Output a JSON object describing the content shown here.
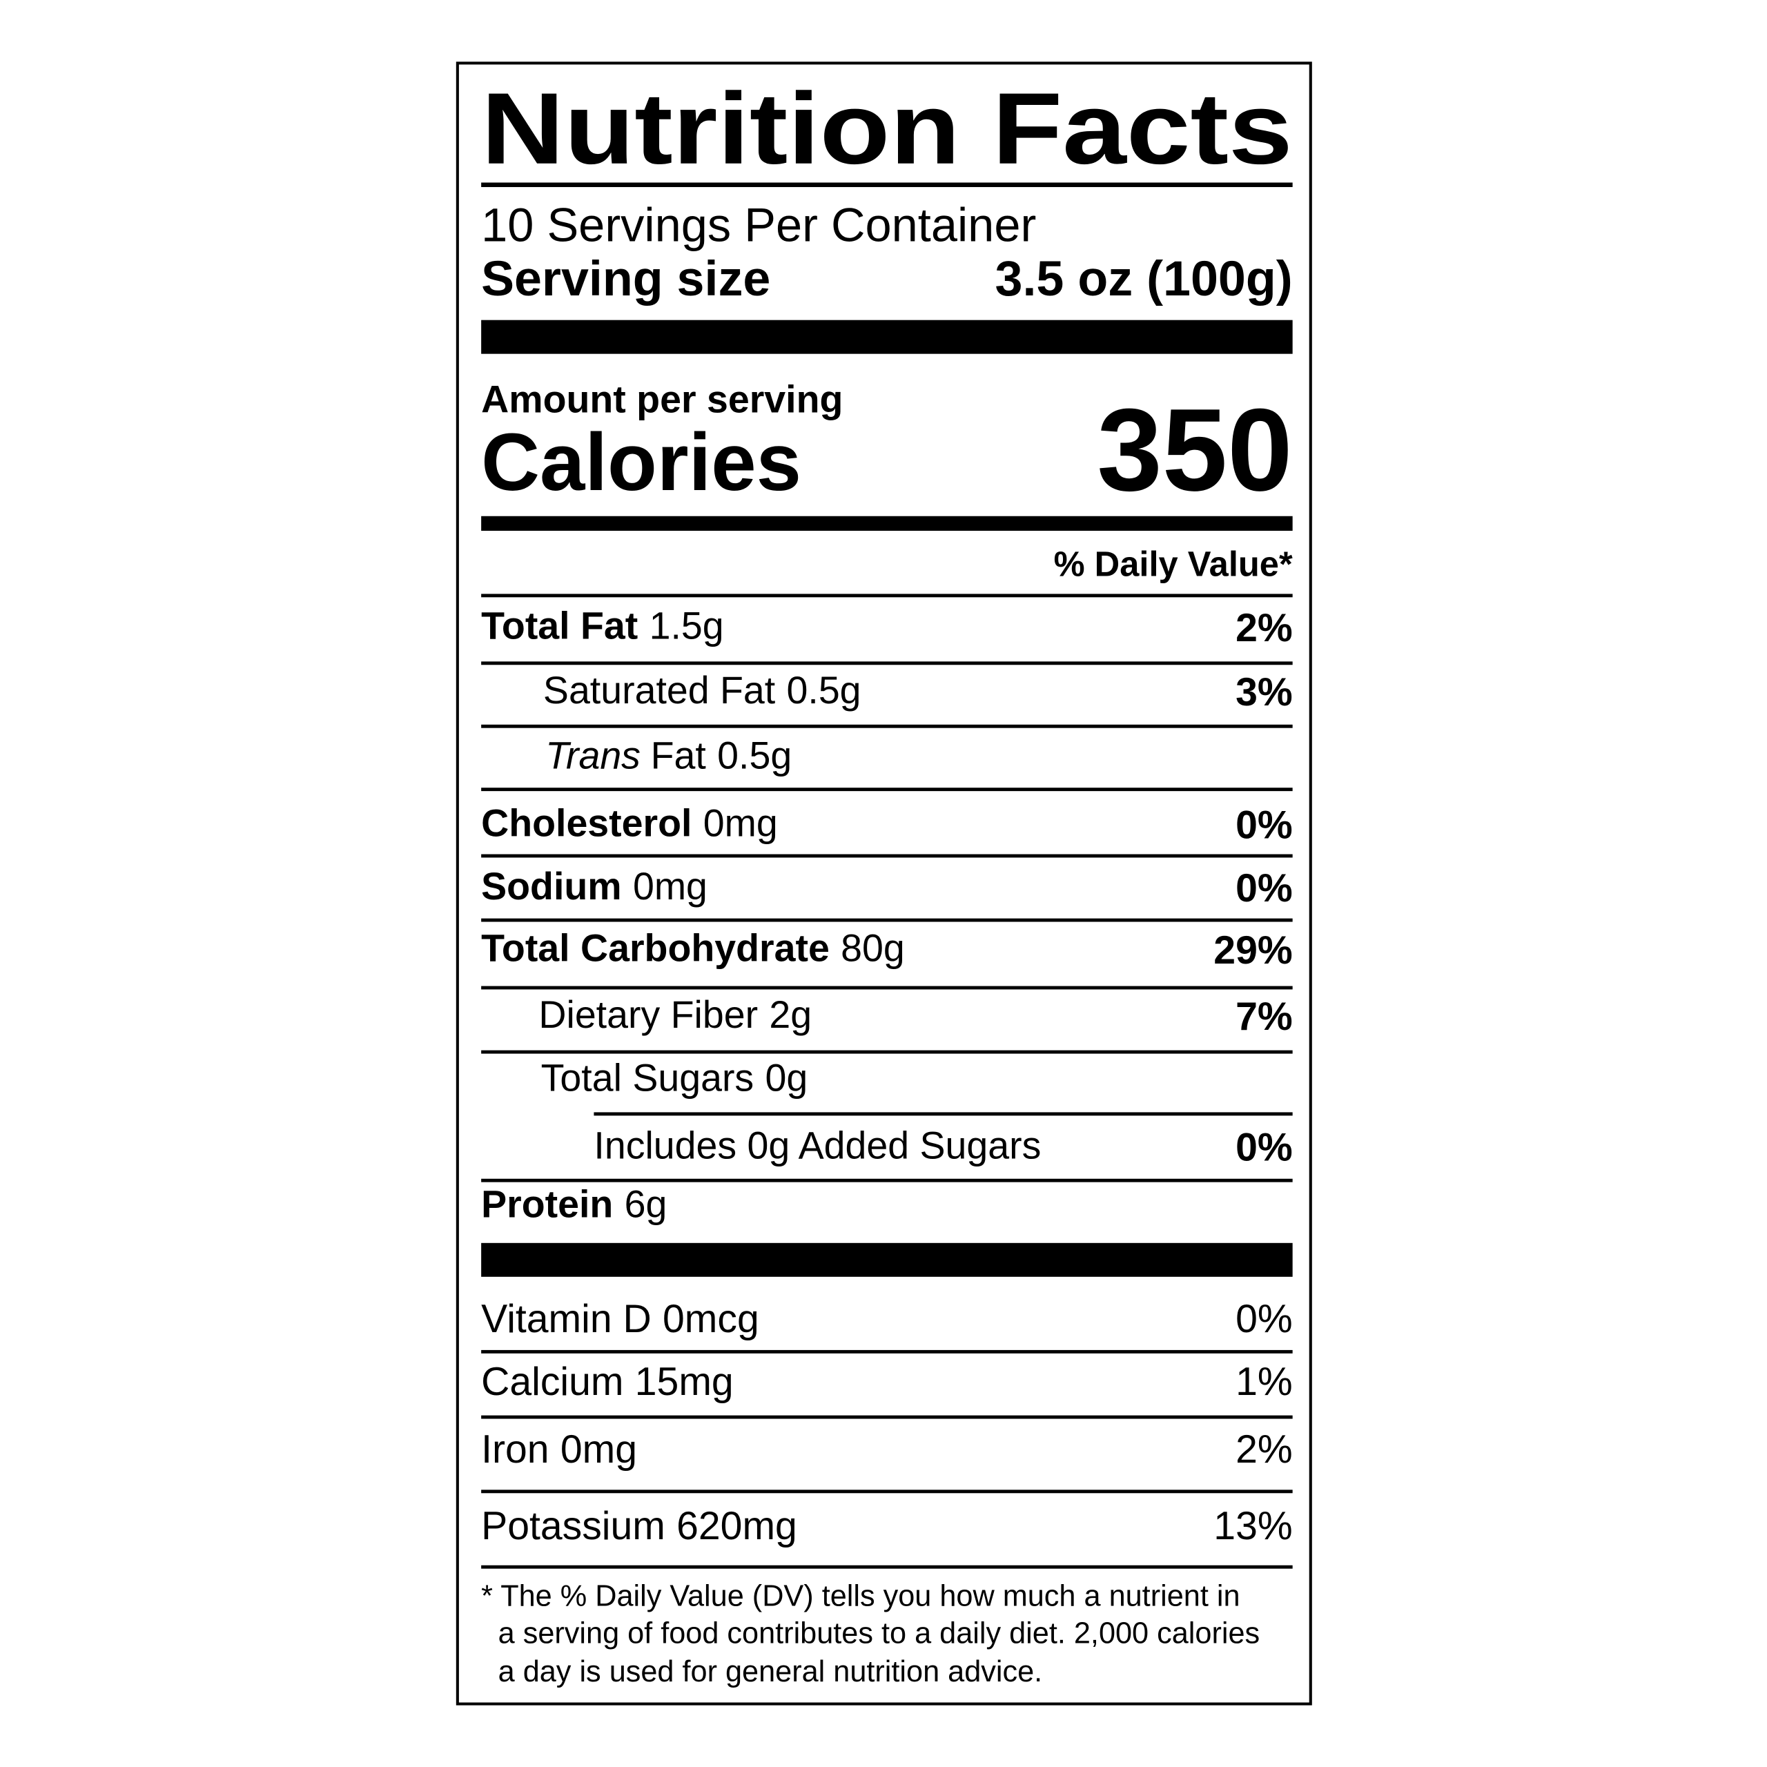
{
  "title": "Nutrition Facts",
  "servings": "10 Servings Per Container",
  "serving_size": {
    "label": "Serving size",
    "value": "3.5 oz (100g)"
  },
  "amount_per_serving": "Amount per serving",
  "calories": {
    "label": "Calories",
    "value": 350
  },
  "daily_value_header": "% Daily Value*",
  "nutrients": [
    {
      "name": "Total Fat",
      "amount": "1.5g",
      "dv": "2%"
    },
    {
      "name": "Saturated Fat",
      "amount": "0.5g",
      "dv": "3%"
    },
    {
      "name_italic": "Trans",
      "name": "Fat",
      "amount": "0.5g"
    },
    {
      "name": "Cholesterol",
      "amount": "0mg",
      "dv": "0%"
    },
    {
      "name": "Sodium",
      "amount": "0mg",
      "dv": "0%"
    },
    {
      "name": "Total Carbohydrate",
      "amount": "80g",
      "dv": "29%"
    },
    {
      "name": "Dietary Fiber",
      "amount": "2g",
      "dv": "7%"
    },
    {
      "name": "Total Sugars",
      "amount": "0g"
    },
    {
      "name": "Includes 0g Added Sugars",
      "dv": "0%"
    },
    {
      "name": "Protein",
      "amount": "6g"
    }
  ],
  "vitamins": [
    {
      "name": "Vitamin D",
      "amount": "0mcg",
      "dv": "0%"
    },
    {
      "name": "Calcium",
      "amount": "15mg",
      "dv": "1%"
    },
    {
      "name": "Iron",
      "amount": "0mg",
      "dv": "2%"
    },
    {
      "name": "Potassium",
      "amount": "620mg",
      "dv": "13%"
    }
  ],
  "footnote": [
    "* The % Daily Value (DV) tells you how much a nutrient in",
    "a serving of food contributes to a daily diet. 2,000 calories",
    "a day is used for general nutrition advice."
  ]
}
